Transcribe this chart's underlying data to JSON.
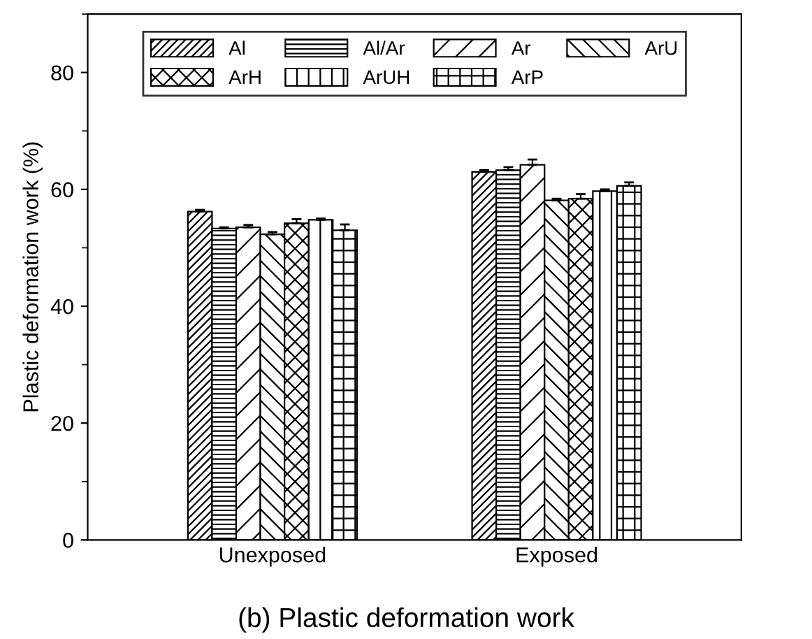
{
  "chart_data": {
    "type": "bar",
    "title": "(b) Plastic deformation work",
    "ylabel": "Plastic deformation work (%)",
    "categories": [
      "Unexposed",
      "Exposed"
    ],
    "series": [
      {
        "name": "Al",
        "color": "#000000",
        "values": [
          56.2,
          63.0
        ],
        "errors": [
          0.3,
          0.3
        ]
      },
      {
        "name": "Al/Ar",
        "color": "#000000",
        "values": [
          53.3,
          63.3
        ],
        "errors": [
          0.2,
          0.5
        ]
      },
      {
        "name": "Ar",
        "color": "#000000",
        "values": [
          53.5,
          64.2
        ],
        "errors": [
          0.4,
          0.9
        ]
      },
      {
        "name": "ArU",
        "color": "#000000",
        "values": [
          52.3,
          58.1
        ],
        "errors": [
          0.4,
          0.3
        ]
      },
      {
        "name": "ArH",
        "color": "#000000",
        "values": [
          54.2,
          58.4
        ],
        "errors": [
          0.7,
          0.8
        ]
      },
      {
        "name": "ArUH",
        "color": "#000000",
        "values": [
          54.8,
          59.7
        ],
        "errors": [
          0.2,
          0.3
        ]
      },
      {
        "name": "ArP",
        "color": "#000000",
        "values": [
          53.0,
          60.6
        ],
        "errors": [
          1.0,
          0.6
        ]
      }
    ],
    "ylim": [
      0,
      90
    ],
    "yticks": [
      0,
      20,
      40,
      60,
      80
    ],
    "grid": false,
    "legend": "top"
  }
}
